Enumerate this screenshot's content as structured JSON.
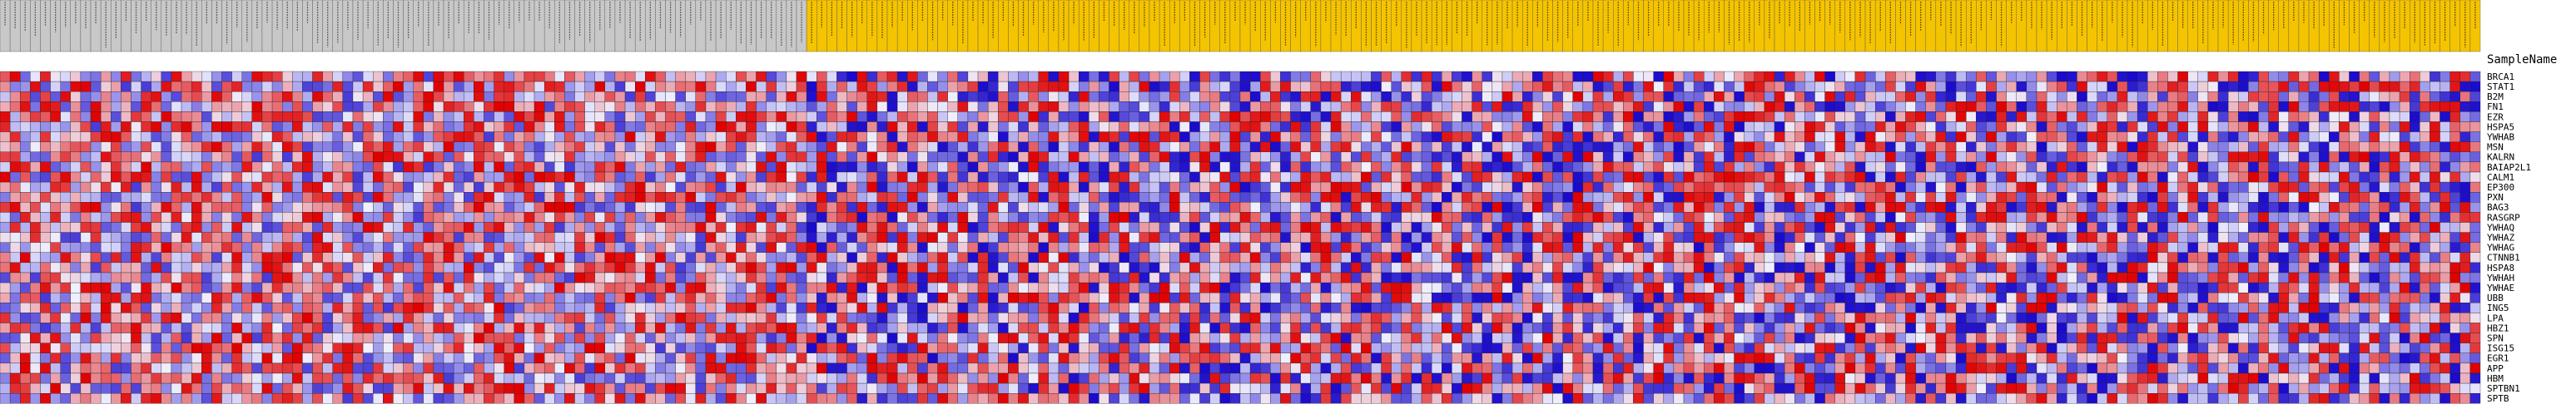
{
  "chart_data": {
    "type": "heatmap",
    "title": "",
    "column_header_label": "SampleName",
    "column_count": 246,
    "column_groups": [
      {
        "name": "",
        "color": "#c8c8c8",
        "count": 80
      },
      {
        "name": "",
        "color": "#f5c400",
        "count": 166
      }
    ],
    "rows": [
      "BRCA1",
      "STAT1",
      "B2M",
      "FN1",
      "EZR",
      "HSPA5",
      "YWHAB",
      "MSN",
      "KALRN",
      "BAIAP2L1",
      "CALM1",
      "EP300",
      "PXN",
      "BAG3",
      "RASGRP",
      "YWHAQ",
      "YWHAZ",
      "YWHAG",
      "CTNNB1",
      "HSPA8",
      "YWHAH",
      "YWHAE",
      "UBB",
      "ING5",
      "LPA",
      "HBZ1",
      "SPN",
      "ISG15",
      "EGR1",
      "APP",
      "HBM",
      "SPTBN1",
      "SPTB"
    ],
    "color_scale": {
      "low": "#1a0acc",
      "mid": "#f0f0ff",
      "high": "#e00000"
    },
    "seed": 20240517
  }
}
